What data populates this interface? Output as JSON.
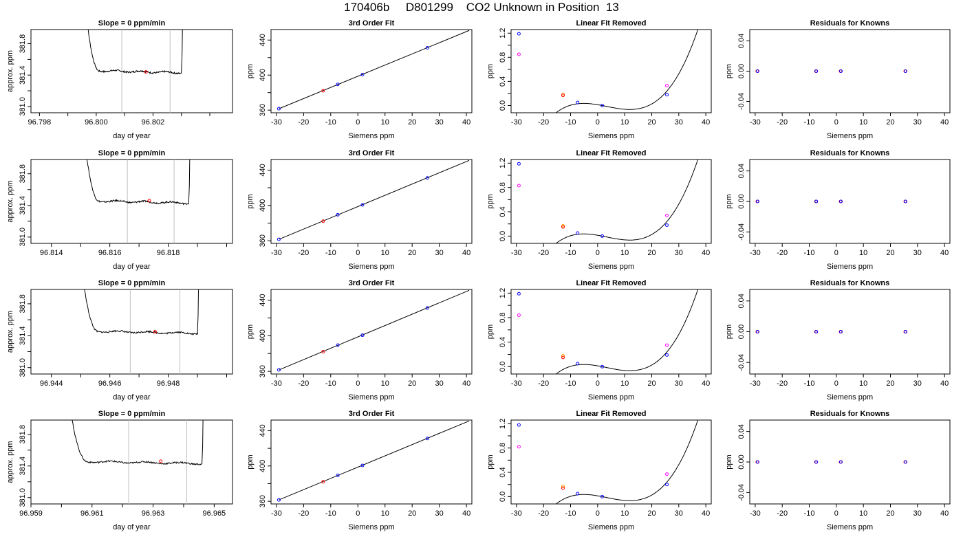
{
  "title": "170406b     D801299    CO2 Unknown in Position  13",
  "colors": {
    "line": "#000000",
    "gray": "#bebebe",
    "red": "#ff0000",
    "blue": "#0000ff",
    "magenta": "#ff00ff",
    "orange": "#ffa500"
  },
  "labels": {
    "slope": "Slope =  0  ppm/min",
    "fit3": "3rd Order Fit",
    "linrem": "Linear Fit Removed",
    "resid": "Residuals for Knowns",
    "x_doy": "day of year",
    "y_approx": "approx. ppm",
    "x_siemens": "Siemens ppm",
    "y_ppm": "ppm"
  },
  "chart_data": [
    {
      "type": "line",
      "row": 0,
      "col": 0,
      "title": "Slope =  0  ppm/min",
      "xlabel": "day of year",
      "ylabel": "approx. ppm",
      "xlim": [
        96.7977,
        96.8048
      ],
      "ylim": [
        380.92,
        381.98
      ],
      "xticks": [
        96.798,
        96.799,
        96.8,
        96.801,
        96.802,
        96.803,
        96.804
      ],
      "xticklabels": [
        "96.798",
        "",
        "96.800",
        "",
        "96.802",
        "",
        ""
      ],
      "yticks": [
        381.0,
        381.2,
        381.4,
        381.6,
        381.8
      ],
      "yticklabels": [
        "381.0",
        "",
        "381.4",
        "",
        "381.8"
      ],
      "trace_start": 96.7996,
      "trace_end": 96.803,
      "trace_level": 381.46,
      "vlines": [
        96.8009,
        96.8026
      ],
      "marker": {
        "x": 96.80175,
        "y": 381.44
      }
    },
    {
      "type": "line",
      "row": 1,
      "col": 0,
      "title": "Slope =  0  ppm/min",
      "xlabel": "day of year",
      "ylabel": "approx. ppm",
      "xlim": [
        96.8133,
        96.8202
      ],
      "ylim": [
        380.92,
        381.98
      ],
      "xticks": [
        96.814,
        96.815,
        96.816,
        96.817,
        96.818,
        96.819,
        96.82
      ],
      "xticklabels": [
        "96.814",
        "",
        "96.816",
        "",
        "96.818",
        "",
        ""
      ],
      "yticks": [
        381.0,
        381.2,
        381.4,
        381.6,
        381.8
      ],
      "yticklabels": [
        "381.0",
        "",
        "381.4",
        "",
        "381.8"
      ],
      "trace_start": 96.8151,
      "trace_end": 96.8187,
      "trace_level": 381.46,
      "vlines": [
        96.8166,
        96.8182
      ],
      "marker": {
        "x": 96.81735,
        "y": 381.46
      }
    },
    {
      "type": "line",
      "row": 2,
      "col": 0,
      "title": "Slope =  0  ppm/min",
      "xlabel": "day of year",
      "ylabel": "approx. ppm",
      "xlim": [
        96.9433,
        96.9502
      ],
      "ylim": [
        380.92,
        381.98
      ],
      "xticks": [
        96.944,
        96.945,
        96.946,
        96.947,
        96.948,
        96.949,
        96.95
      ],
      "xticklabels": [
        "96.944",
        "",
        "96.946",
        "",
        "96.948",
        "",
        ""
      ],
      "yticks": [
        381.0,
        381.2,
        381.4,
        381.6,
        381.8
      ],
      "yticklabels": [
        "381.0",
        "",
        "381.4",
        "",
        "381.8"
      ],
      "trace_start": 96.945,
      "trace_end": 96.949,
      "trace_level": 381.46,
      "vlines": [
        96.9467,
        96.9484
      ],
      "marker": {
        "x": 96.94755,
        "y": 381.45
      }
    },
    {
      "type": "line",
      "row": 3,
      "col": 0,
      "title": "Slope =  0  ppm/min",
      "xlabel": "day of year",
      "ylabel": "approx. ppm",
      "xlim": [
        96.959,
        96.9656
      ],
      "ylim": [
        380.92,
        381.98
      ],
      "xticks": [
        96.959,
        96.96,
        96.961,
        96.962,
        96.963,
        96.964,
        96.965
      ],
      "xticklabels": [
        "96.959",
        "",
        "96.961",
        "",
        "96.963",
        "",
        "96.965"
      ],
      "yticks": [
        381.0,
        381.2,
        381.4,
        381.6,
        381.8
      ],
      "yticklabels": [
        "381.0",
        "",
        "381.4",
        "",
        "381.8"
      ],
      "trace_start": 96.9602,
      "trace_end": 96.9646,
      "trace_level": 381.46,
      "vlines": [
        96.9622,
        96.9641
      ],
      "marker": {
        "x": 96.96325,
        "y": 381.46
      }
    },
    {
      "type": "scatter",
      "row": 0,
      "col": 1,
      "title": "3rd Order Fit",
      "xlabel": "Siemens ppm",
      "ylabel": "ppm",
      "xlim": [
        -32,
        42
      ],
      "ylim": [
        357,
        452
      ],
      "xticks": [
        -30,
        -20,
        -10,
        0,
        10,
        20,
        30,
        40
      ],
      "yticks": [
        360,
        380,
        400,
        420,
        440
      ],
      "yticklabels": [
        "360",
        "",
        "400",
        "",
        "440"
      ],
      "fit_line": {
        "x0": -29,
        "y0": 361.7,
        "x1": 41,
        "y1": 451.0
      },
      "points_blue": [
        [
          -29.1,
          361.6
        ],
        [
          -7.4,
          389.4
        ],
        [
          1.7,
          400.6
        ],
        [
          25.6,
          431.2
        ]
      ],
      "points_red": [
        [
          -12.8,
          382.1
        ]
      ]
    },
    {
      "type": "scatter",
      "row": 1,
      "col": 1,
      "title": "3rd Order Fit",
      "xlabel": "Siemens ppm",
      "ylabel": "ppm",
      "xlim": [
        -32,
        42
      ],
      "ylim": [
        357,
        452
      ],
      "xticks": [
        -30,
        -20,
        -10,
        0,
        10,
        20,
        30,
        40
      ],
      "yticks": [
        360,
        380,
        400,
        420,
        440
      ],
      "yticklabels": [
        "360",
        "",
        "400",
        "",
        "440"
      ],
      "fit_line": {
        "x0": -29,
        "y0": 361.7,
        "x1": 41,
        "y1": 451.0
      },
      "points_blue": [
        [
          -29.1,
          361.6
        ],
        [
          -7.4,
          389.4
        ],
        [
          1.7,
          400.6
        ],
        [
          25.6,
          431.2
        ]
      ],
      "points_red": [
        [
          -12.8,
          382.1
        ]
      ]
    },
    {
      "type": "scatter",
      "row": 2,
      "col": 1,
      "title": "3rd Order Fit",
      "xlabel": "Siemens ppm",
      "ylabel": "ppm",
      "xlim": [
        -32,
        42
      ],
      "ylim": [
        357,
        452
      ],
      "xticks": [
        -30,
        -20,
        -10,
        0,
        10,
        20,
        30,
        40
      ],
      "yticks": [
        360,
        380,
        400,
        420,
        440
      ],
      "yticklabels": [
        "360",
        "",
        "400",
        "",
        "440"
      ],
      "fit_line": {
        "x0": -29,
        "y0": 361.7,
        "x1": 41,
        "y1": 451.0
      },
      "points_blue": [
        [
          -29.1,
          361.6
        ],
        [
          -7.4,
          389.4
        ],
        [
          1.7,
          400.6
        ],
        [
          25.6,
          431.2
        ]
      ],
      "points_red": [
        [
          -12.8,
          382.1
        ]
      ]
    },
    {
      "type": "scatter",
      "row": 3,
      "col": 1,
      "title": "3rd Order Fit",
      "xlabel": "Siemens ppm",
      "ylabel": "ppm",
      "xlim": [
        -32,
        42
      ],
      "ylim": [
        357,
        452
      ],
      "xticks": [
        -30,
        -20,
        -10,
        0,
        10,
        20,
        30,
        40
      ],
      "yticks": [
        360,
        380,
        400,
        420,
        440
      ],
      "yticklabels": [
        "360",
        "",
        "400",
        "",
        "440"
      ],
      "fit_line": {
        "x0": -29,
        "y0": 361.7,
        "x1": 41,
        "y1": 451.0
      },
      "points_blue": [
        [
          -29.1,
          361.6
        ],
        [
          -7.4,
          389.4
        ],
        [
          1.7,
          400.6
        ],
        [
          25.6,
          431.2
        ]
      ],
      "points_red": [
        [
          -12.8,
          382.1
        ]
      ]
    },
    {
      "type": "line",
      "row": 0,
      "col": 2,
      "title": "Linear Fit Removed",
      "xlabel": "Siemens ppm",
      "ylabel": "ppm",
      "xlim": [
        -32,
        42
      ],
      "ylim": [
        -0.12,
        1.26
      ],
      "xticks": [
        -30,
        -20,
        -10,
        0,
        10,
        20,
        30,
        40
      ],
      "yticks": [
        0.0,
        0.2,
        0.4,
        0.6,
        0.8,
        1.0,
        1.2
      ],
      "yticklabels": [
        "0.0",
        "",
        "0.4",
        "",
        "0.8",
        "",
        "1.2"
      ],
      "curve_coef": [
        -0.001035,
        0.0233,
        -0.0336,
        0.0395
      ],
      "curve_range": [
        -29,
        41
      ],
      "points_blue": [
        [
          -29.1,
          1.19
        ],
        [
          -7.4,
          0.05
        ],
        [
          1.7,
          0.0
        ],
        [
          25.6,
          0.18
        ]
      ],
      "points_magenta": [
        [
          -29.1,
          0.85
        ],
        [
          25.6,
          0.33
        ]
      ],
      "points_orange": [
        [
          -12.8,
          0.18
        ]
      ],
      "points_red": [
        [
          -12.8,
          0.17
        ]
      ]
    },
    {
      "type": "line",
      "row": 1,
      "col": 2,
      "title": "Linear Fit Removed",
      "xlabel": "Siemens ppm",
      "ylabel": "ppm",
      "xlim": [
        -32,
        42
      ],
      "ylim": [
        -0.12,
        1.26
      ],
      "xticks": [
        -30,
        -20,
        -10,
        0,
        10,
        20,
        30,
        40
      ],
      "yticks": [
        0.0,
        0.2,
        0.4,
        0.6,
        0.8,
        1.0,
        1.2
      ],
      "yticklabels": [
        "0.0",
        "",
        "0.4",
        "",
        "0.8",
        "",
        "1.2"
      ],
      "curve_coef": [
        -0.001035,
        0.0233,
        -0.0336,
        0.0395
      ],
      "curve_range": [
        -29,
        41
      ],
      "points_blue": [
        [
          -29.1,
          1.19
        ],
        [
          -7.4,
          0.05
        ],
        [
          1.7,
          0.0
        ],
        [
          25.6,
          0.18
        ]
      ],
      "points_magenta": [
        [
          -29.1,
          0.83
        ],
        [
          25.6,
          0.34
        ]
      ],
      "points_orange": [
        [
          -12.8,
          0.17
        ]
      ],
      "points_red": [
        [
          -12.8,
          0.15
        ]
      ]
    },
    {
      "type": "line",
      "row": 2,
      "col": 2,
      "title": "Linear Fit Removed",
      "xlabel": "Siemens ppm",
      "ylabel": "ppm",
      "xlim": [
        -32,
        42
      ],
      "ylim": [
        -0.12,
        1.26
      ],
      "xticks": [
        -30,
        -20,
        -10,
        0,
        10,
        20,
        30,
        40
      ],
      "yticks": [
        0.0,
        0.2,
        0.4,
        0.6,
        0.8,
        1.0,
        1.2
      ],
      "yticklabels": [
        "0.0",
        "",
        "0.4",
        "",
        "0.8",
        "",
        "1.2"
      ],
      "curve_coef": [
        -0.001035,
        0.0233,
        -0.0336,
        0.0395
      ],
      "curve_range": [
        -29,
        41
      ],
      "points_blue": [
        [
          -29.1,
          1.19
        ],
        [
          -7.4,
          0.05
        ],
        [
          1.7,
          0.0
        ],
        [
          25.6,
          0.19
        ]
      ],
      "points_magenta": [
        [
          -29.1,
          0.84
        ],
        [
          25.6,
          0.35
        ]
      ],
      "points_orange": [
        [
          -12.8,
          0.18
        ]
      ],
      "points_red": [
        [
          -12.8,
          0.15
        ]
      ]
    },
    {
      "type": "line",
      "row": 3,
      "col": 2,
      "title": "Linear Fit Removed",
      "xlabel": "Siemens ppm",
      "ylabel": "ppm",
      "xlim": [
        -32,
        42
      ],
      "ylim": [
        -0.12,
        1.26
      ],
      "xticks": [
        -30,
        -20,
        -10,
        0,
        10,
        20,
        30,
        40
      ],
      "yticks": [
        0.0,
        0.2,
        0.4,
        0.6,
        0.8,
        1.0,
        1.2
      ],
      "yticklabels": [
        "0.0",
        "",
        "0.4",
        "",
        "0.8",
        "",
        "1.2"
      ],
      "curve_coef": [
        -0.001035,
        0.0233,
        -0.0336,
        0.0395
      ],
      "curve_range": [
        -29,
        41
      ],
      "points_blue": [
        [
          -29.1,
          1.18
        ],
        [
          -7.4,
          0.05
        ],
        [
          1.7,
          0.0
        ],
        [
          25.6,
          0.2
        ]
      ],
      "points_magenta": [
        [
          -29.1,
          0.82
        ],
        [
          25.6,
          0.37
        ]
      ],
      "points_orange": [
        [
          -12.8,
          0.17
        ]
      ],
      "points_red": [
        [
          -12.8,
          0.14
        ]
      ]
    },
    {
      "type": "scatter",
      "row": 0,
      "col": 3,
      "title": "Residuals for Knowns",
      "xlabel": "Siemens ppm",
      "ylabel": "ppm",
      "xlim": [
        -32,
        42
      ],
      "ylim": [
        -0.055,
        0.055
      ],
      "xticks": [
        -30,
        -20,
        -10,
        0,
        10,
        20,
        30,
        40
      ],
      "yticks": [
        -0.04,
        0.0,
        0.04
      ],
      "yticklabels": [
        "-0.04",
        "0.00",
        "0.04"
      ],
      "points_red": [
        [
          -29.1,
          0.0
        ],
        [
          -7.4,
          0.0
        ],
        [
          1.7,
          0.0
        ],
        [
          25.6,
          0.0
        ]
      ],
      "points_blue": [
        [
          -29.1,
          0.0
        ],
        [
          -7.4,
          0.0
        ],
        [
          1.7,
          0.0
        ],
        [
          25.6,
          0.0
        ]
      ]
    },
    {
      "type": "scatter",
      "row": 1,
      "col": 3,
      "title": "Residuals for Knowns",
      "xlabel": "Siemens ppm",
      "ylabel": "ppm",
      "xlim": [
        -32,
        42
      ],
      "ylim": [
        -0.055,
        0.055
      ],
      "xticks": [
        -30,
        -20,
        -10,
        0,
        10,
        20,
        30,
        40
      ],
      "yticks": [
        -0.04,
        0.0,
        0.04
      ],
      "yticklabels": [
        "-0.04",
        "0.00",
        "0.04"
      ],
      "points_red": [
        [
          -29.1,
          0.0
        ],
        [
          -7.4,
          0.0
        ],
        [
          1.7,
          0.0
        ],
        [
          25.6,
          0.0
        ]
      ],
      "points_blue": [
        [
          -29.1,
          0.0
        ],
        [
          -7.4,
          0.0
        ],
        [
          1.7,
          0.0
        ],
        [
          25.6,
          0.0
        ]
      ]
    },
    {
      "type": "scatter",
      "row": 2,
      "col": 3,
      "title": "Residuals for Knowns",
      "xlabel": "Siemens ppm",
      "ylabel": "ppm",
      "xlim": [
        -32,
        42
      ],
      "ylim": [
        -0.055,
        0.055
      ],
      "xticks": [
        -30,
        -20,
        -10,
        0,
        10,
        20,
        30,
        40
      ],
      "yticks": [
        -0.04,
        0.0,
        0.04
      ],
      "yticklabels": [
        "-0.04",
        "0.00",
        "0.04"
      ],
      "points_red": [
        [
          -29.1,
          0.0
        ],
        [
          -7.4,
          0.0
        ],
        [
          1.7,
          0.0
        ],
        [
          25.6,
          0.0
        ]
      ],
      "points_blue": [
        [
          -29.1,
          0.0
        ],
        [
          -7.4,
          0.0
        ],
        [
          1.7,
          0.0
        ],
        [
          25.6,
          0.0
        ]
      ]
    },
    {
      "type": "scatter",
      "row": 3,
      "col": 3,
      "title": "Residuals for Knowns",
      "xlabel": "Siemens ppm",
      "ylabel": "ppm",
      "xlim": [
        -32,
        42
      ],
      "ylim": [
        -0.055,
        0.055
      ],
      "xticks": [
        -30,
        -20,
        -10,
        0,
        10,
        20,
        30,
        40
      ],
      "yticks": [
        -0.04,
        0.0,
        0.04
      ],
      "yticklabels": [
        "-0.04",
        "0.00",
        "0.04"
      ],
      "points_red": [
        [
          -29.1,
          0.0
        ],
        [
          -7.4,
          0.0
        ],
        [
          1.7,
          0.0
        ],
        [
          25.6,
          0.0
        ]
      ],
      "points_blue": [
        [
          -29.1,
          0.0
        ],
        [
          -7.4,
          0.0
        ],
        [
          1.7,
          0.0
        ],
        [
          25.6,
          0.0
        ]
      ]
    }
  ]
}
